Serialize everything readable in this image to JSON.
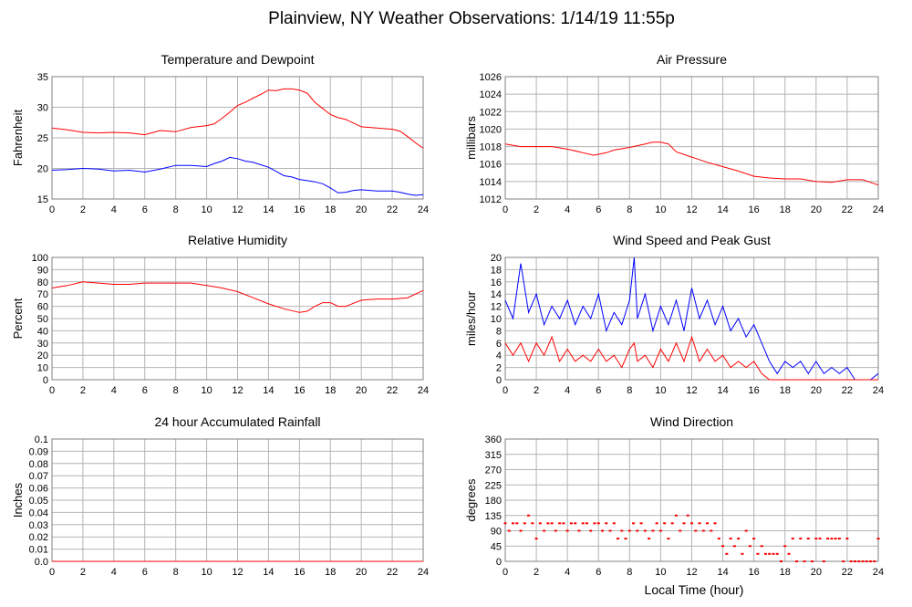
{
  "page": {
    "title": "Plainview, NY Weather Observations: 1/14/19 11:55p",
    "xlabel": "Local Time (hour)"
  },
  "chart_data": [
    {
      "id": "temp",
      "type": "line",
      "title": "Temperature and Dewpoint",
      "ylabel": "Fahrenheit",
      "ylim": [
        15,
        35
      ],
      "yticks": [
        "15",
        "20",
        "25",
        "30",
        "35"
      ],
      "xlim": [
        0,
        24
      ],
      "xticks": [
        "0",
        "2",
        "4",
        "6",
        "8",
        "10",
        "12",
        "14",
        "16",
        "18",
        "20",
        "22",
        "24"
      ],
      "grid": true,
      "x": [
        0,
        1,
        2,
        3,
        4,
        5,
        6,
        7,
        8,
        9,
        10,
        10.5,
        11,
        11.5,
        12,
        12.5,
        13,
        13.5,
        14,
        14.5,
        15,
        15.5,
        16,
        16.5,
        17,
        17.5,
        18,
        18.5,
        19,
        19.5,
        20,
        21,
        22,
        22.5,
        23,
        23.5,
        24
      ],
      "series": [
        {
          "color": "#ff0000",
          "values": [
            26.6,
            26.3,
            25.9,
            25.8,
            25.9,
            25.8,
            25.5,
            26.2,
            26.0,
            26.7,
            27.0,
            27.3,
            28.2,
            29.2,
            30.3,
            30.8,
            31.5,
            32.1,
            32.8,
            32.7,
            33.0,
            33.0,
            32.8,
            32.3,
            30.8,
            29.8,
            28.8,
            28.3,
            28.0,
            27.4,
            26.8,
            26.6,
            26.4,
            26.1,
            25.2,
            24.2,
            23.3
          ]
        },
        {
          "color": "#0000ff",
          "values": [
            19.7,
            19.8,
            20.0,
            19.9,
            19.6,
            19.7,
            19.4,
            19.9,
            20.5,
            20.5,
            20.3,
            20.8,
            21.2,
            21.8,
            21.6,
            21.2,
            21.0,
            20.6,
            20.2,
            19.5,
            18.8,
            18.6,
            18.2,
            18.0,
            17.8,
            17.5,
            16.8,
            16.0,
            16.1,
            16.4,
            16.5,
            16.3,
            16.3,
            16.1,
            15.8,
            15.6,
            15.7
          ]
        }
      ]
    },
    {
      "id": "pressure",
      "type": "line",
      "title": "Air Pressure",
      "ylabel": "millibars",
      "ylim": [
        1012,
        1026
      ],
      "yticks": [
        "1012",
        "1014",
        "1016",
        "1018",
        "1020",
        "1022",
        "1024",
        "1026"
      ],
      "xlim": [
        0,
        24
      ],
      "xticks": [
        "0",
        "2",
        "4",
        "6",
        "8",
        "10",
        "12",
        "14",
        "16",
        "18",
        "20",
        "22",
        "24"
      ],
      "grid": true,
      "x": [
        0,
        1,
        2,
        3,
        4,
        5,
        5.7,
        6.5,
        7,
        8,
        9,
        9.5,
        10,
        10.5,
        11,
        12,
        13,
        14,
        15,
        16,
        17,
        18,
        19,
        20,
        21,
        22,
        23,
        23.5,
        24
      ],
      "series": [
        {
          "color": "#ff0000",
          "values": [
            1018.3,
            1018.0,
            1018.0,
            1018.0,
            1017.7,
            1017.3,
            1017.0,
            1017.3,
            1017.6,
            1017.9,
            1018.3,
            1018.5,
            1018.5,
            1018.3,
            1017.4,
            1016.8,
            1016.2,
            1015.7,
            1015.2,
            1014.6,
            1014.4,
            1014.3,
            1014.3,
            1014.0,
            1013.9,
            1014.2,
            1014.2,
            1013.9,
            1013.6
          ]
        }
      ]
    },
    {
      "id": "humidity",
      "type": "line",
      "title": "Relative Humidity",
      "ylabel": "Percent",
      "ylim": [
        0,
        100
      ],
      "yticks": [
        "0",
        "10",
        "20",
        "30",
        "40",
        "50",
        "60",
        "70",
        "80",
        "90",
        "100"
      ],
      "xlim": [
        0,
        24
      ],
      "xticks": [
        "0",
        "2",
        "4",
        "6",
        "8",
        "10",
        "12",
        "14",
        "16",
        "18",
        "20",
        "22",
        "24"
      ],
      "grid": true,
      "x": [
        0,
        1,
        2,
        3,
        4,
        5,
        6,
        7,
        8,
        9,
        10,
        11,
        12,
        13,
        14,
        15,
        16,
        16.5,
        17,
        17.5,
        18,
        18.5,
        19,
        20,
        21,
        22,
        23,
        24
      ],
      "series": [
        {
          "color": "#ff0000",
          "values": [
            75,
            77,
            80,
            79,
            78,
            78,
            79,
            79,
            79,
            79,
            77,
            75,
            72,
            67,
            62,
            58,
            55,
            56,
            60,
            63,
            63,
            60,
            60,
            65,
            66,
            66,
            67,
            73
          ]
        }
      ]
    },
    {
      "id": "wind",
      "type": "line",
      "title": "Wind Speed and Peak Gust",
      "ylabel": "miles/hour",
      "ylim": [
        0,
        20
      ],
      "yticks": [
        "0",
        "2",
        "4",
        "6",
        "8",
        "10",
        "12",
        "14",
        "16",
        "18",
        "20"
      ],
      "xlim": [
        0,
        24
      ],
      "xticks": [
        "0",
        "2",
        "4",
        "6",
        "8",
        "10",
        "12",
        "14",
        "16",
        "18",
        "20",
        "22",
        "24"
      ],
      "grid": true,
      "x": [
        0,
        0.5,
        1,
        1.5,
        2,
        2.5,
        3,
        3.5,
        4,
        4.5,
        5,
        5.5,
        6,
        6.5,
        7,
        7.5,
        8,
        8.3,
        8.5,
        9,
        9.5,
        10,
        10.5,
        11,
        11.5,
        12,
        12.5,
        13,
        13.5,
        14,
        14.5,
        15,
        15.5,
        16,
        16.5,
        17,
        17.5,
        18,
        18.5,
        19,
        19.5,
        20,
        20.5,
        21,
        21.5,
        22,
        22.5,
        23,
        23.5,
        24
      ],
      "series": [
        {
          "color": "#0000ff",
          "values": [
            13,
            10,
            19,
            11,
            14,
            9,
            12,
            10,
            13,
            9,
            12,
            10,
            14,
            8,
            11,
            9,
            13,
            20,
            10,
            14,
            8,
            12,
            9,
            13,
            8,
            15,
            10,
            13,
            9,
            12,
            8,
            10,
            7,
            9,
            6,
            3,
            1,
            3,
            2,
            3,
            1,
            3,
            1,
            2,
            1,
            2,
            0,
            0,
            0,
            1
          ]
        },
        {
          "color": "#ff0000",
          "values": [
            6,
            4,
            6,
            3,
            6,
            4,
            7,
            3,
            5,
            3,
            4,
            3,
            5,
            3,
            4,
            2,
            5,
            6,
            3,
            4,
            2,
            5,
            3,
            6,
            3,
            7,
            3,
            5,
            3,
            4,
            2,
            3,
            2,
            3,
            1,
            0,
            0,
            0,
            0,
            0,
            0,
            0,
            0,
            0,
            0,
            0,
            0,
            0,
            0,
            0
          ]
        }
      ]
    },
    {
      "id": "rain",
      "type": "line",
      "title": "24 hour Accumulated Rainfall",
      "ylabel": "Inches",
      "ylim": [
        0,
        0.1
      ],
      "yticks": [
        "0.0",
        "0.01",
        "0.02",
        "0.03",
        "0.04",
        "0.05",
        "0.06",
        "0.07",
        "0.08",
        "0.09",
        "0.1"
      ],
      "xlim": [
        0,
        24
      ],
      "xticks": [
        "0",
        "2",
        "4",
        "6",
        "8",
        "10",
        "12",
        "14",
        "16",
        "18",
        "20",
        "22",
        "24"
      ],
      "grid": true,
      "x": [
        0,
        24
      ],
      "series": [
        {
          "color": "#ff0000",
          "values": [
            0,
            0
          ]
        }
      ]
    },
    {
      "id": "direction",
      "type": "scatter",
      "title": "Wind Direction",
      "ylabel": "degrees",
      "ylim": [
        0,
        360
      ],
      "yticks": [
        "0",
        "45",
        "90",
        "135",
        "180",
        "225",
        "270",
        "315",
        "360"
      ],
      "xlim": [
        0,
        24
      ],
      "xticks": [
        "0",
        "2",
        "4",
        "6",
        "8",
        "10",
        "12",
        "14",
        "16",
        "18",
        "20",
        "22",
        "24"
      ],
      "grid": true,
      "series": [
        {
          "color": "#ff0000",
          "points": [
            [
              0.0,
              112
            ],
            [
              0.25,
              90
            ],
            [
              0.5,
              112
            ],
            [
              0.75,
              112
            ],
            [
              1.0,
              90
            ],
            [
              1.25,
              112
            ],
            [
              1.5,
              135
            ],
            [
              1.75,
              112
            ],
            [
              2.0,
              67
            ],
            [
              2.25,
              112
            ],
            [
              2.5,
              90
            ],
            [
              2.75,
              112
            ],
            [
              3.0,
              112
            ],
            [
              3.25,
              90
            ],
            [
              3.5,
              112
            ],
            [
              3.75,
              112
            ],
            [
              4.0,
              90
            ],
            [
              4.25,
              112
            ],
            [
              4.5,
              112
            ],
            [
              4.75,
              90
            ],
            [
              5.0,
              112
            ],
            [
              5.25,
              112
            ],
            [
              5.5,
              90
            ],
            [
              5.75,
              112
            ],
            [
              6.0,
              112
            ],
            [
              6.25,
              90
            ],
            [
              6.5,
              112
            ],
            [
              6.75,
              90
            ],
            [
              7.0,
              112
            ],
            [
              7.25,
              67
            ],
            [
              7.5,
              90
            ],
            [
              7.75,
              67
            ],
            [
              8.0,
              90
            ],
            [
              8.25,
              112
            ],
            [
              8.5,
              90
            ],
            [
              8.75,
              112
            ],
            [
              9.0,
              90
            ],
            [
              9.25,
              67
            ],
            [
              9.5,
              90
            ],
            [
              9.75,
              112
            ],
            [
              10.0,
              90
            ],
            [
              10.25,
              112
            ],
            [
              10.5,
              67
            ],
            [
              10.75,
              112
            ],
            [
              11.0,
              135
            ],
            [
              11.25,
              90
            ],
            [
              11.5,
              112
            ],
            [
              11.75,
              135
            ],
            [
              12.0,
              112
            ],
            [
              12.25,
              90
            ],
            [
              12.5,
              112
            ],
            [
              12.75,
              90
            ],
            [
              13.0,
              112
            ],
            [
              13.25,
              90
            ],
            [
              13.5,
              112
            ],
            [
              13.75,
              67
            ],
            [
              14.0,
              45
            ],
            [
              14.25,
              22
            ],
            [
              14.5,
              67
            ],
            [
              14.75,
              45
            ],
            [
              15.0,
              67
            ],
            [
              15.25,
              22
            ],
            [
              15.5,
              90
            ],
            [
              15.75,
              45
            ],
            [
              16.0,
              67
            ],
            [
              16.25,
              22
            ],
            [
              16.5,
              45
            ],
            [
              16.75,
              22
            ],
            [
              17.0,
              22
            ],
            [
              17.25,
              22
            ],
            [
              17.5,
              22
            ],
            [
              17.75,
              0
            ],
            [
              18.0,
              45
            ],
            [
              18.25,
              22
            ],
            [
              18.5,
              67
            ],
            [
              18.75,
              0
            ],
            [
              19.0,
              67
            ],
            [
              19.25,
              0
            ],
            [
              19.5,
              67
            ],
            [
              19.75,
              0
            ],
            [
              20.0,
              67
            ],
            [
              20.25,
              67
            ],
            [
              20.5,
              0
            ],
            [
              20.75,
              67
            ],
            [
              21.0,
              67
            ],
            [
              21.25,
              67
            ],
            [
              21.5,
              67
            ],
            [
              21.75,
              0
            ],
            [
              22.0,
              67
            ],
            [
              22.25,
              0
            ],
            [
              22.5,
              0
            ],
            [
              22.75,
              0
            ],
            [
              23.0,
              0
            ],
            [
              23.25,
              0
            ],
            [
              23.5,
              0
            ],
            [
              23.75,
              0
            ],
            [
              24.0,
              67
            ]
          ]
        }
      ]
    }
  ]
}
